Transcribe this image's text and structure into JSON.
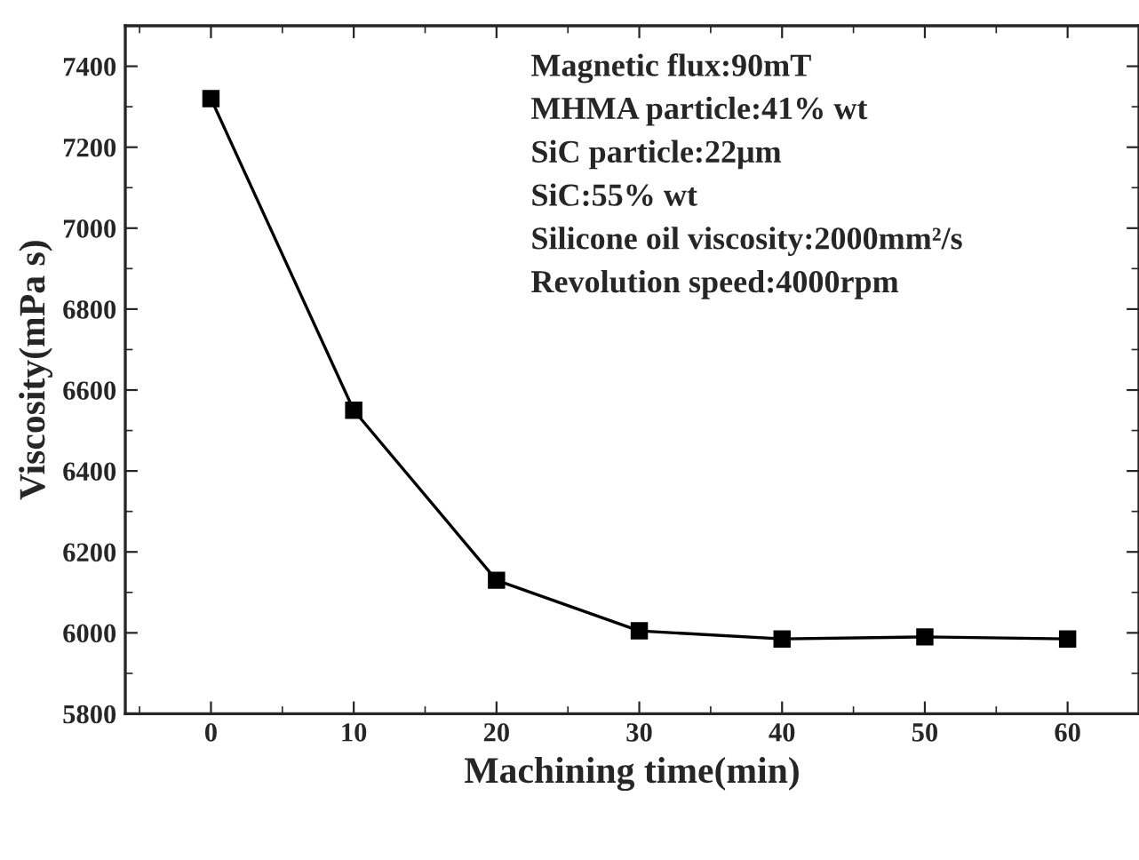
{
  "chart_data": {
    "type": "line",
    "xlabel": "Machining time(min)",
    "ylabel": "Viscosity(mPa s)",
    "x": [
      0,
      10,
      20,
      30,
      40,
      50,
      60
    ],
    "series": [
      {
        "color": "#000000",
        "values": [
          7320,
          6550,
          6130,
          6005,
          5985,
          5990,
          5985
        ]
      }
    ],
    "xlim": [
      -6,
      65
    ],
    "xticks": [
      0,
      10,
      20,
      30,
      40,
      50,
      60
    ],
    "ylim": [
      5800,
      7500
    ],
    "yticks": [
      5800,
      6000,
      6200,
      6400,
      6600,
      6800,
      7000,
      7200,
      7400
    ],
    "marker": "square",
    "line_style": "solid",
    "grid": false,
    "legend": false,
    "annotations": [
      "Magnetic flux:90mT",
      "MHMA particle:41% wt",
      "SiC particle:22μm",
      "SiC:55% wt",
      "Silicone oil viscosity:2000mm²/s",
      "Revolution speed:4000rpm"
    ]
  }
}
